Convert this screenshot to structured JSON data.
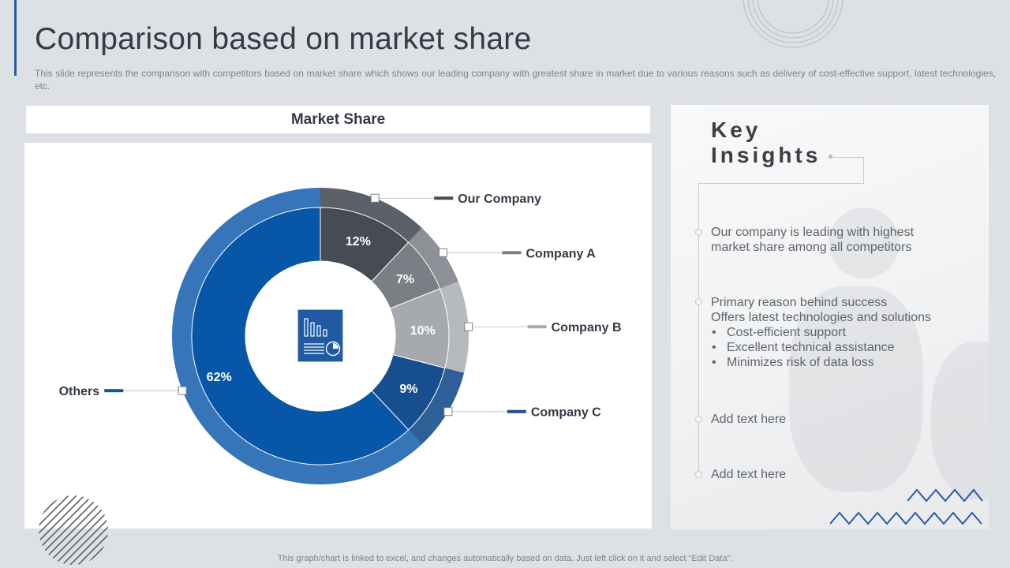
{
  "slide": {
    "title": "Comparison based on market share",
    "subtitle": "This slide represents the comparison with competitors based on market share which shows our leading company with greatest share in market due to various  reasons such as delivery  of cost-effective  support, latest technologies,  etc.",
    "footer": "This graph/chart is linked to excel,  and changes automatically based on data. Just left click on it and select “Edit Data”."
  },
  "chart_header": "Market Share",
  "chart_data": {
    "type": "pie",
    "donut": true,
    "categories": [
      "Our Company",
      "Company A",
      "Company B",
      "Company C",
      "Others"
    ],
    "values": [
      12,
      7,
      10,
      9,
      62
    ],
    "value_labels": [
      "12%",
      "7%",
      "10%",
      "9%",
      "62%"
    ],
    "colors": [
      "#474c54",
      "#7a7f86",
      "#a6aaaf",
      "#174e8f",
      "#0756a8"
    ],
    "outer_ring_colors": [
      "#5b6068",
      "#8d9197",
      "#b6b9bd",
      "#2f5f97",
      "#3675b8"
    ],
    "start_angle_deg": 0,
    "direction": "clockwise",
    "legend_position": "callouts"
  },
  "center_icon": "report-chart-icon",
  "insights": {
    "title_line1": "Key",
    "title_line2": "Insights",
    "item1": "Our company is leading with highest market share among all competitors",
    "item2_line1": "Primary reason behind success",
    "item2_line2": "Offers latest technologies and solutions",
    "item2_bullets": [
      "Cost-efficient support",
      "Excellent technical assistance",
      "Minimizes risk of data loss"
    ],
    "item3": "Add text here",
    "item4": "Add text here"
  }
}
